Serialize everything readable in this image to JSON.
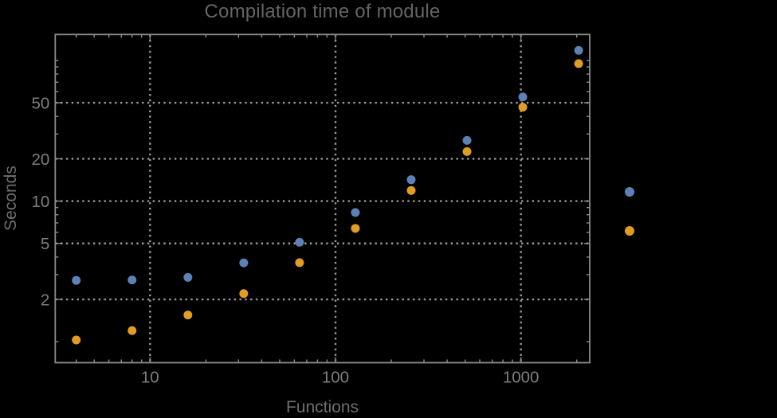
{
  "title": "Compilation time of module",
  "x_axis_label": "Functions",
  "y_axis_label": "Seconds",
  "colors": {
    "background": "#000000",
    "frame": "#8c8c8c",
    "grid": "#9a9a9a",
    "tick_label": "#7d7d7d",
    "title": "#646464",
    "axis_label": "#6e6e6e"
  },
  "chart_data": {
    "type": "scatter",
    "title": "Compilation time of module",
    "xlabel": "Functions",
    "ylabel": "Seconds",
    "x_scale": "log",
    "y_scale": "log",
    "xlim": [
      3.08,
      2350
    ],
    "ylim": [
      0.71,
      153
    ],
    "grid": "dotted-at-major-ticks",
    "x": [
      4,
      8,
      16,
      32,
      64,
      128,
      256,
      512,
      1024,
      2048
    ],
    "series": [
      {
        "name": "",
        "marker": "disk",
        "color": "#5e81b5",
        "values": [
          2.73,
          2.75,
          2.87,
          3.64,
          5.1,
          8.3,
          14.2,
          27,
          55,
          118
        ]
      },
      {
        "name": "",
        "marker": "disk",
        "color": "#e19c24",
        "values": [
          1.03,
          1.2,
          1.55,
          2.2,
          3.65,
          6.4,
          11.9,
          22.5,
          46.5,
          95
        ]
      }
    ],
    "x_ticks": {
      "major": [
        10,
        100,
        1000
      ],
      "major_labels": [
        "10",
        "100",
        "1000"
      ],
      "minor": [
        4,
        5,
        6,
        7,
        8,
        9,
        20,
        30,
        40,
        50,
        60,
        70,
        80,
        90,
        200,
        300,
        400,
        500,
        600,
        700,
        800,
        900,
        2000
      ]
    },
    "y_ticks": {
      "major": [
        2,
        5,
        10,
        20,
        50
      ],
      "major_labels": [
        "2",
        "5",
        "10",
        "20",
        "50"
      ],
      "minor": [
        1,
        3,
        4,
        6,
        7,
        8,
        9,
        30,
        40,
        60,
        70,
        80,
        90,
        100
      ]
    },
    "legend": {
      "position": "right-outside",
      "labels_visible": false,
      "marker_colors": [
        "#5e81b5",
        "#e19c24"
      ]
    }
  }
}
